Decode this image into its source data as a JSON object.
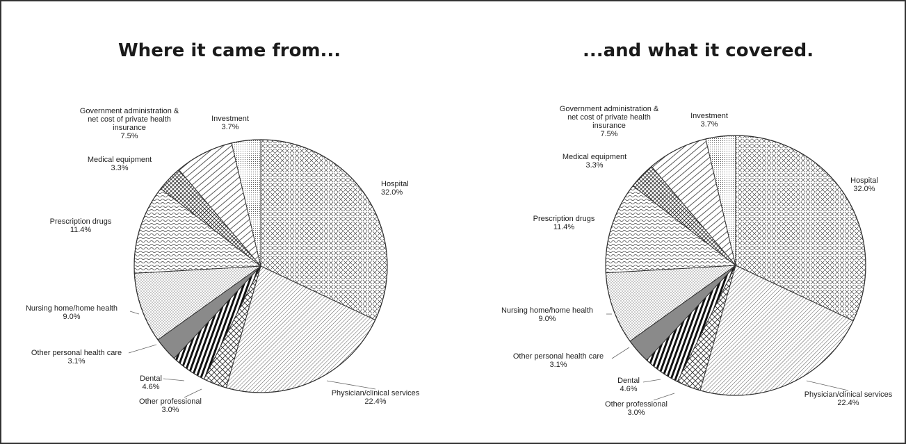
{
  "page": {
    "title_left": "Where it came from...",
    "title_right": "...and what it covered."
  },
  "colors": {
    "stroke": "#333333",
    "dark": "#111111",
    "gray": "#8a8a8a",
    "background": "#ffffff"
  },
  "chart_data": [
    {
      "type": "pie",
      "title": "Where it came from...",
      "slices": [
        {
          "name": "Hospital",
          "value": 32.0,
          "label": "32.0%",
          "pattern": "crosshatch-x"
        },
        {
          "name": "Physician/clinical services",
          "value": 22.4,
          "label": "22.4%",
          "pattern": "diag-fine"
        },
        {
          "name": "Other professional",
          "value": 3.0,
          "label": "3.0%",
          "pattern": "diamond"
        },
        {
          "name": "Dental",
          "value": 4.6,
          "label": "4.6%",
          "pattern": "vstripe-bold"
        },
        {
          "name": "Other personal health care",
          "value": 3.1,
          "label": "3.1%",
          "pattern": "solid-gray"
        },
        {
          "name": "Nursing home/home health",
          "value": 9.0,
          "label": "9.0%",
          "pattern": "dots"
        },
        {
          "name": "Prescription drugs",
          "value": 11.4,
          "label": "11.4%",
          "pattern": "wave"
        },
        {
          "name": "Medical equipment",
          "value": 3.3,
          "label": "3.3%",
          "pattern": "grid-dark"
        },
        {
          "name": "Government administration & net cost of private health insurance",
          "value": 7.5,
          "label": "7.5%",
          "pattern": "diag-wide"
        },
        {
          "name": "Investment",
          "value": 3.7,
          "label": "3.7%",
          "pattern": "dots-dense"
        }
      ]
    },
    {
      "type": "pie",
      "title": "...and what it covered.",
      "slices": [
        {
          "name": "Hospital",
          "value": 32.0,
          "label": "32.0%",
          "pattern": "crosshatch-x"
        },
        {
          "name": "Physician/clinical services",
          "value": 22.4,
          "label": "22.4%",
          "pattern": "diag-fine"
        },
        {
          "name": "Other professional",
          "value": 3.0,
          "label": "3.0%",
          "pattern": "diamond"
        },
        {
          "name": "Dental",
          "value": 4.6,
          "label": "4.6%",
          "pattern": "vstripe-bold"
        },
        {
          "name": "Other personal health care",
          "value": 3.1,
          "label": "3.1%",
          "pattern": "solid-gray"
        },
        {
          "name": "Nursing home/home health",
          "value": 9.0,
          "label": "9.0%",
          "pattern": "dots"
        },
        {
          "name": "Prescription drugs",
          "value": 11.4,
          "label": "11.4%",
          "pattern": "wave"
        },
        {
          "name": "Medical equipment",
          "value": 3.3,
          "label": "3.3%",
          "pattern": "grid-dark"
        },
        {
          "name": "Government administration & net cost of private health insurance",
          "value": 7.5,
          "label": "7.5%",
          "pattern": "diag-wide"
        },
        {
          "name": "Investment",
          "value": 3.7,
          "label": "3.7%",
          "pattern": "dots-dense"
        }
      ]
    }
  ],
  "label_text": {
    "Hospital": [
      "Hospital"
    ],
    "Physician/clinical services": [
      "Physician/clinical services"
    ],
    "Other professional": [
      "Other professional"
    ],
    "Dental": [
      "Dental"
    ],
    "Other personal health care": [
      "Other personal health care"
    ],
    "Nursing home/home health": [
      "Nursing home/home health"
    ],
    "Prescription drugs": [
      "Prescription drugs"
    ],
    "Medical equipment": [
      "Medical equipment"
    ],
    "Government administration & net cost of private health insurance": [
      "Government administration &",
      "net cost of private health",
      "insurance"
    ],
    "Investment": [
      "Investment"
    ]
  }
}
